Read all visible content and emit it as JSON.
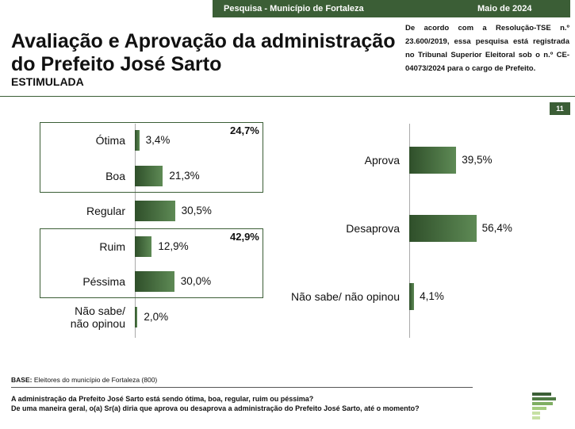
{
  "header": {
    "survey": "Pesquisa - Município de Fortaleza",
    "date": "Maio de 2024",
    "title": "Avaliação e Aprovação da administração do Prefeito José Sarto",
    "subtitle": "ESTIMULADA",
    "legal_note": "De acordo com a Resolução-TSE n.º 23.600/2019, essa pesquisa está registrada no Tribunal Superior Eleitoral sob o n.º CE-04073/2024 para o cargo de Prefeito.",
    "page_number": "11"
  },
  "chart_data": [
    {
      "type": "bar",
      "orientation": "horizontal",
      "categories": [
        "Ótima",
        "Boa",
        "Regular",
        "Ruim",
        "Péssima",
        "Não sabe/ não opinou"
      ],
      "values": [
        3.4,
        21.3,
        30.5,
        12.9,
        30.0,
        2.0
      ],
      "value_labels": [
        "3,4%",
        "21,3%",
        "30,5%",
        "12,9%",
        "30,0%",
        "2,0%"
      ],
      "groups": [
        {
          "label": "24,7%",
          "value": 24.7,
          "members": [
            "Ótima",
            "Boa"
          ]
        },
        {
          "label": "42,9%",
          "value": 42.9,
          "members": [
            "Ruim",
            "Péssima"
          ]
        }
      ],
      "colors": {
        "bar": "#3b5e36",
        "box": "#3b5e36"
      }
    },
    {
      "type": "bar",
      "orientation": "horizontal",
      "categories": [
        "Aprova",
        "Desaprova",
        "Não sabe/ não opinou"
      ],
      "values": [
        39.5,
        56.4,
        4.1
      ],
      "value_labels": [
        "39,5%",
        "56,4%",
        "4,1%"
      ],
      "colors": {
        "bar": "#3b5e36"
      }
    }
  ],
  "footer": {
    "base_label": "BASE:",
    "base_text": " Eleitores do município de Fortaleza (800)",
    "question1": "A administração da Prefeito José Sarto está sendo ótima, boa, regular, ruim ou péssima?",
    "question2": "De uma maneira geral, o(a) Sr(a) diria que aprova ou desaprova a administração do Prefeito José Sarto, até o momento?"
  }
}
